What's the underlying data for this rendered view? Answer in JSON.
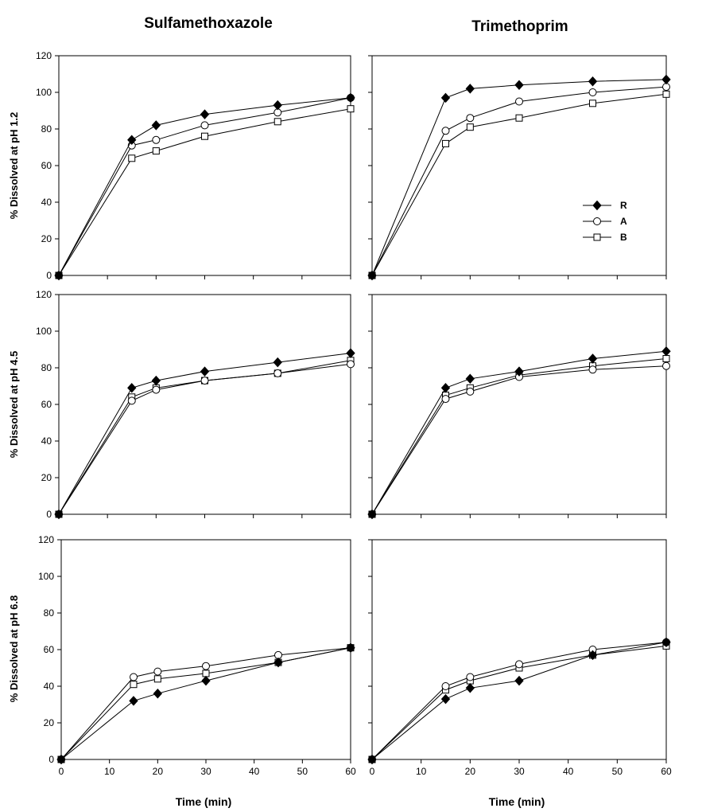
{
  "column_titles": [
    "Sulfamethoxazole",
    "Trimethoprim"
  ],
  "row_ylabels": [
    "% Dissolved at pH 1.2",
    "% Dissolved at pH 4.5",
    "% Dissolved at pH 6.8"
  ],
  "xlabel": "Time (min)",
  "x_ticks": [
    0,
    10,
    20,
    30,
    40,
    50,
    60
  ],
  "y_ticks": [
    0,
    20,
    40,
    60,
    80,
    100,
    120
  ],
  "xlim": [
    0,
    60
  ],
  "ylim": [
    0,
    120
  ],
  "legend": {
    "placement": "inside right, top-right panel",
    "entries": [
      {
        "key": "R",
        "label": "R",
        "marker": "filled-diamond"
      },
      {
        "key": "A",
        "label": "A",
        "marker": "open-circle"
      },
      {
        "key": "B",
        "label": "B",
        "marker": "open-square"
      }
    ]
  },
  "chart_data": [
    {
      "type": "line",
      "x": [
        0,
        15,
        20,
        30,
        45,
        60
      ],
      "xlim": [
        0,
        60
      ],
      "ylim": [
        0,
        120
      ],
      "series": [
        {
          "name": "R",
          "values": [
            0,
            74,
            82,
            88,
            93,
            97
          ]
        },
        {
          "name": "A",
          "values": [
            0,
            71,
            74,
            82,
            89,
            97
          ]
        },
        {
          "name": "B",
          "values": [
            0,
            64,
            68,
            76,
            84,
            91
          ]
        }
      ]
    },
    {
      "type": "line",
      "x": [
        0,
        15,
        20,
        30,
        45,
        60
      ],
      "xlim": [
        0,
        60
      ],
      "ylim": [
        0,
        120
      ],
      "series": [
        {
          "name": "R",
          "values": [
            0,
            97,
            102,
            104,
            106,
            107
          ]
        },
        {
          "name": "A",
          "values": [
            0,
            79,
            86,
            95,
            100,
            103
          ]
        },
        {
          "name": "B",
          "values": [
            0,
            72,
            81,
            86,
            94,
            99
          ]
        }
      ]
    },
    {
      "type": "line",
      "x": [
        0,
        15,
        20,
        30,
        45,
        60
      ],
      "xlim": [
        0,
        60
      ],
      "ylim": [
        0,
        120
      ],
      "series": [
        {
          "name": "R",
          "values": [
            0,
            69,
            73,
            78,
            83,
            88
          ]
        },
        {
          "name": "A",
          "values": [
            0,
            62,
            68,
            73,
            77,
            82
          ]
        },
        {
          "name": "B",
          "values": [
            0,
            64,
            69,
            73,
            77,
            84
          ]
        }
      ]
    },
    {
      "type": "line",
      "x": [
        0,
        15,
        20,
        30,
        45,
        60
      ],
      "xlim": [
        0,
        60
      ],
      "ylim": [
        0,
        120
      ],
      "series": [
        {
          "name": "R",
          "values": [
            0,
            69,
            74,
            78,
            85,
            89
          ]
        },
        {
          "name": "A",
          "values": [
            0,
            63,
            67,
            75,
            79,
            81
          ]
        },
        {
          "name": "B",
          "values": [
            0,
            65,
            69,
            76,
            81,
            85
          ]
        }
      ]
    },
    {
      "type": "line",
      "x": [
        0,
        15,
        20,
        30,
        45,
        60
      ],
      "xlim": [
        0,
        60
      ],
      "ylim": [
        0,
        120
      ],
      "series": [
        {
          "name": "R",
          "values": [
            0,
            32,
            36,
            43,
            53,
            61
          ]
        },
        {
          "name": "A",
          "values": [
            0,
            45,
            48,
            51,
            57,
            61
          ]
        },
        {
          "name": "B",
          "values": [
            0,
            41,
            44,
            47,
            53,
            61
          ]
        }
      ]
    },
    {
      "type": "line",
      "x": [
        0,
        15,
        20,
        30,
        45,
        60
      ],
      "xlim": [
        0,
        60
      ],
      "ylim": [
        0,
        120
      ],
      "series": [
        {
          "name": "R",
          "values": [
            0,
            33,
            39,
            43,
            57,
            64
          ]
        },
        {
          "name": "A",
          "values": [
            0,
            40,
            45,
            52,
            60,
            64
          ]
        },
        {
          "name": "B",
          "values": [
            0,
            38,
            43,
            50,
            57,
            62
          ]
        }
      ]
    }
  ]
}
